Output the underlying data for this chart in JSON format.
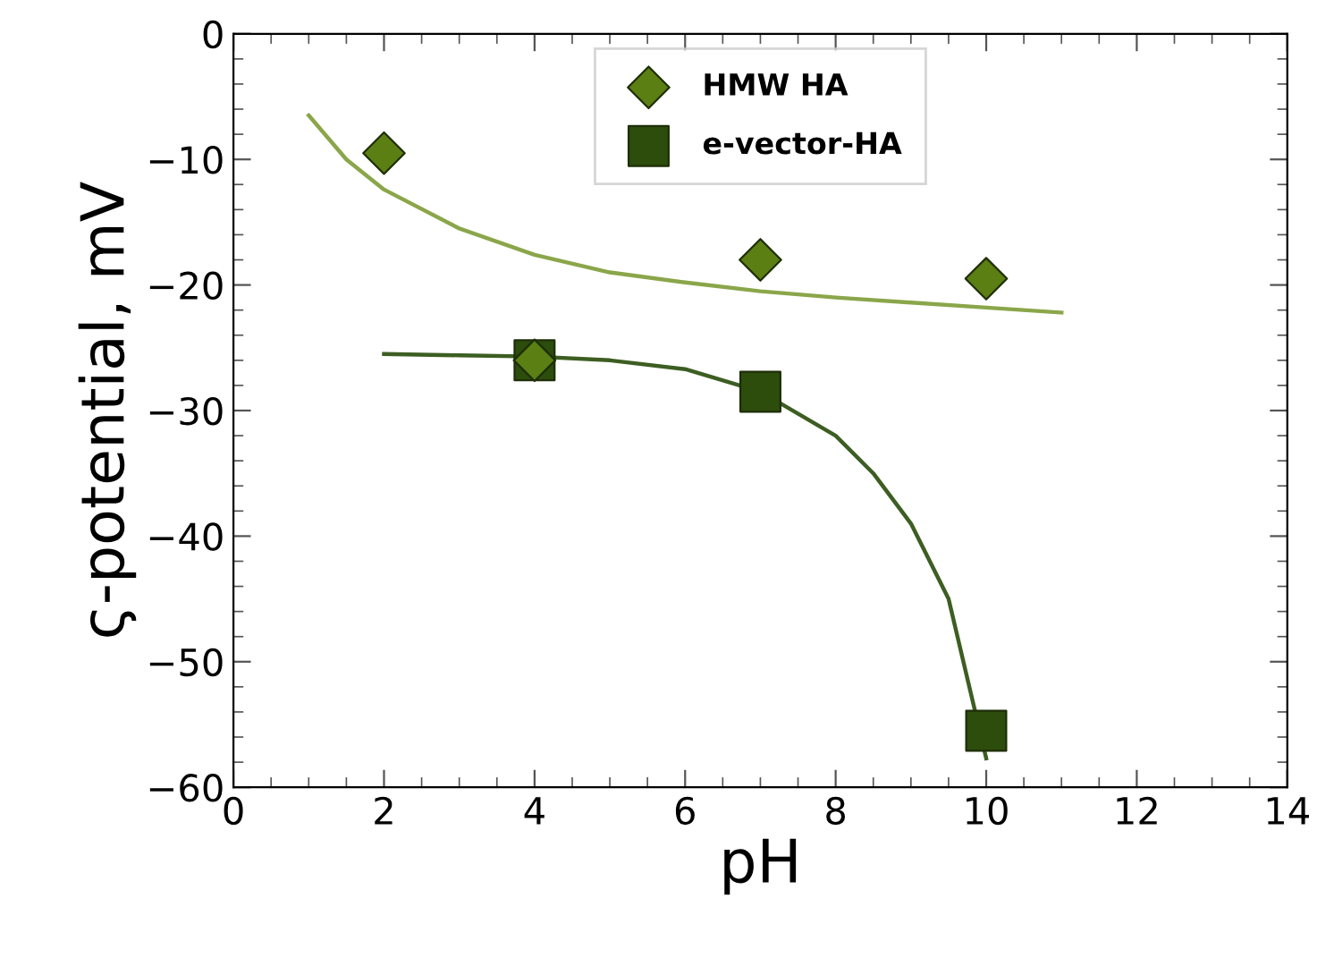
{
  "chart_data": {
    "type": "scatter",
    "xlabel": "pH",
    "ylabel": "ς-potential, mV",
    "xlim": [
      0,
      14
    ],
    "xticks": [
      0,
      2,
      4,
      6,
      8,
      10,
      12,
      14
    ],
    "ylim": [
      -60,
      0
    ],
    "yticks": [
      -60,
      -50,
      -40,
      -30,
      -20,
      -10,
      0
    ],
    "grid": false,
    "legend": "top",
    "series": [
      {
        "type": "line",
        "color": "#8aa64a",
        "marker": "none",
        "x": [
          1,
          1.5,
          2,
          3,
          4,
          5,
          6,
          7,
          8,
          9,
          10,
          11
        ],
        "values": [
          -6.5,
          -10,
          -12.4,
          -15.5,
          -17.6,
          -19,
          -19.8,
          -20.5,
          -21,
          -21.4,
          -21.8,
          -22.2
        ]
      },
      {
        "type": "line",
        "color": "#3d5e22",
        "marker": "none",
        "x": [
          2,
          3,
          4,
          5,
          6,
          7,
          8,
          8.5,
          9,
          9.5,
          10
        ],
        "values": [
          -25.5,
          -25.6,
          -25.7,
          -26,
          -26.7,
          -28.5,
          -32,
          -35,
          -39,
          -45,
          -57.7
        ]
      },
      {
        "name": "HMW HA",
        "color": "#5b7f12",
        "marker": "diamond",
        "x": [
          2,
          4,
          7,
          10
        ],
        "values": [
          -9.5,
          -26,
          -18,
          -19.5
        ]
      },
      {
        "name": "e-vector-HA",
        "color": "#2c4d0c",
        "marker": "square",
        "x": [
          4,
          7,
          10
        ],
        "values": [
          -26,
          -28.5,
          -55.5
        ]
      }
    ]
  }
}
